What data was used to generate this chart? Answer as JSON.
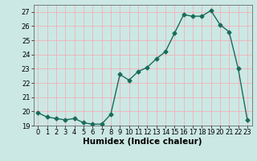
{
  "x": [
    0,
    1,
    2,
    3,
    4,
    5,
    6,
    7,
    8,
    9,
    10,
    11,
    12,
    13,
    14,
    15,
    16,
    17,
    18,
    19,
    20,
    21,
    22,
    23
  ],
  "y": [
    19.9,
    19.6,
    19.5,
    19.4,
    19.5,
    19.2,
    19.1,
    19.1,
    19.8,
    22.6,
    22.2,
    22.8,
    23.1,
    23.7,
    24.2,
    25.5,
    26.8,
    26.7,
    26.7,
    27.1,
    26.1,
    25.6,
    23.0,
    19.4
  ],
  "xlabel": "Humidex (Indice chaleur)",
  "ylim": [
    19,
    27.5
  ],
  "yticks": [
    19,
    20,
    21,
    22,
    23,
    24,
    25,
    26,
    27
  ],
  "xticks": [
    0,
    1,
    2,
    3,
    4,
    5,
    6,
    7,
    8,
    9,
    10,
    11,
    12,
    13,
    14,
    15,
    16,
    17,
    18,
    19,
    20,
    21,
    22,
    23
  ],
  "line_color": "#1a6b5a",
  "bg_color": "#cce8e4",
  "grid_color": "#f0b0b8",
  "marker": "D",
  "markersize": 2.5,
  "linewidth": 1.0,
  "xlabel_fontsize": 7.5,
  "tick_fontsize": 6.0
}
